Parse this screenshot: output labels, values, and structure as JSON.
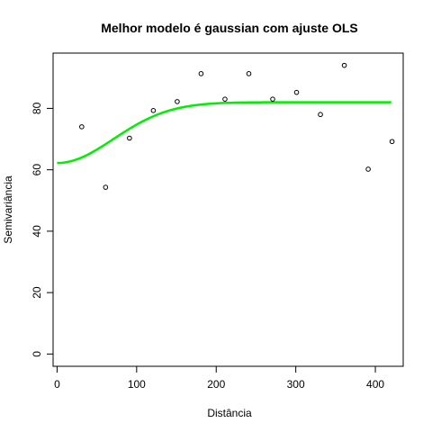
{
  "chart_data": {
    "type": "scatter",
    "title": "Melhor modelo é gaussian com ajuste  OLS",
    "xlabel": "Distância",
    "ylabel": "Semivariância",
    "xlim": [
      -5,
      435
    ],
    "ylim": [
      -4,
      98
    ],
    "xticks": [
      0,
      100,
      200,
      300,
      400
    ],
    "yticks": [
      0,
      20,
      40,
      60,
      80
    ],
    "grid": false,
    "points": [
      {
        "x": 31,
        "y": 74
      },
      {
        "x": 61,
        "y": 54.3
      },
      {
        "x": 91,
        "y": 70.3
      },
      {
        "x": 121,
        "y": 79.3
      },
      {
        "x": 151,
        "y": 82.2
      },
      {
        "x": 181,
        "y": 91.3
      },
      {
        "x": 211,
        "y": 83
      },
      {
        "x": 241,
        "y": 91.3
      },
      {
        "x": 271,
        "y": 83
      },
      {
        "x": 301,
        "y": 85.2
      },
      {
        "x": 331,
        "y": 78
      },
      {
        "x": 361,
        "y": 94
      },
      {
        "x": 391,
        "y": 60.2
      },
      {
        "x": 421,
        "y": 69.2
      }
    ],
    "fitted_model": {
      "name": "gaussian",
      "color": "#00ee00",
      "nugget": 62.2,
      "sill": 82,
      "range": 100,
      "x_start": 0,
      "x_end": 420
    }
  }
}
